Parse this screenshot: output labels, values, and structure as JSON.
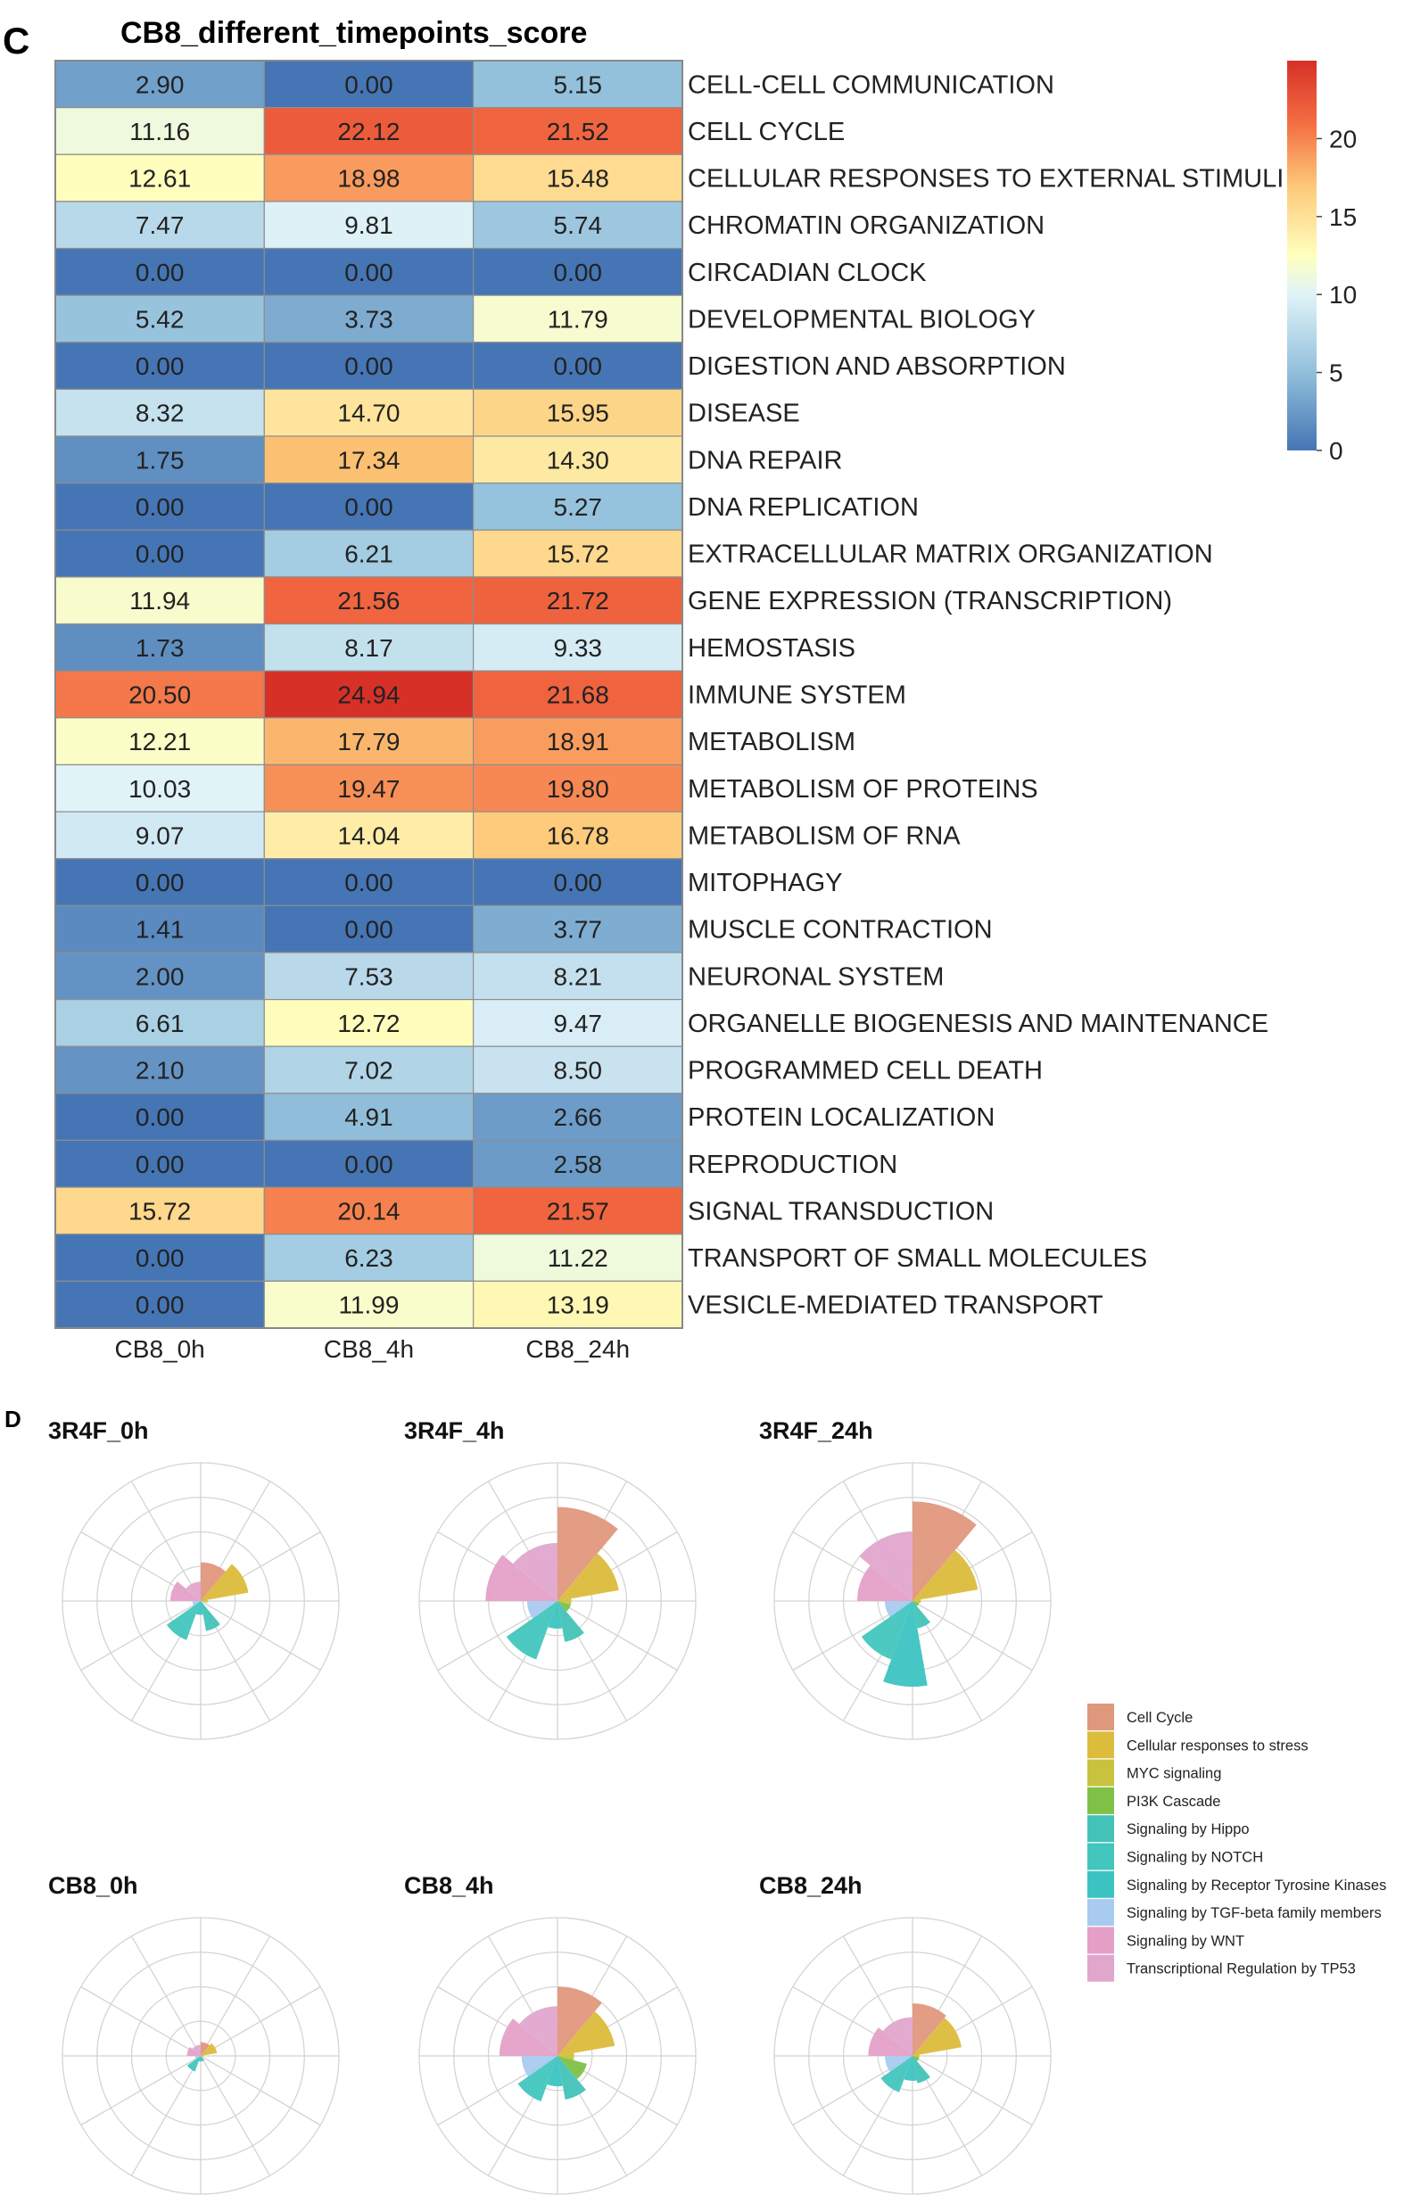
{
  "panel_c": {
    "label": "C",
    "chart_data": {
      "type": "heatmap",
      "title": "CB8_different_timepoints_score",
      "columns": [
        "CB8_0h",
        "CB8_4h",
        "CB8_24h"
      ],
      "rows": [
        {
          "name": "CELL-CELL COMMUNICATION",
          "values": [
            "2.90",
            "0.00",
            "5.15"
          ]
        },
        {
          "name": "CELL CYCLE",
          "values": [
            "11.16",
            "22.12",
            "21.52"
          ]
        },
        {
          "name": "CELLULAR RESPONSES TO EXTERNAL STIMULI",
          "values": [
            "12.61",
            "18.98",
            "15.48"
          ]
        },
        {
          "name": "CHROMATIN ORGANIZATION",
          "values": [
            "7.47",
            "9.81",
            "5.74"
          ]
        },
        {
          "name": "CIRCADIAN CLOCK",
          "values": [
            "0.00",
            "0.00",
            "0.00"
          ]
        },
        {
          "name": "DEVELOPMENTAL BIOLOGY",
          "values": [
            "5.42",
            "3.73",
            "11.79"
          ]
        },
        {
          "name": "DIGESTION AND ABSORPTION",
          "values": [
            "0.00",
            "0.00",
            "0.00"
          ]
        },
        {
          "name": "DISEASE",
          "values": [
            "8.32",
            "14.70",
            "15.95"
          ]
        },
        {
          "name": "DNA REPAIR",
          "values": [
            "1.75",
            "17.34",
            "14.30"
          ]
        },
        {
          "name": "DNA REPLICATION",
          "values": [
            "0.00",
            "0.00",
            "5.27"
          ]
        },
        {
          "name": "EXTRACELLULAR MATRIX ORGANIZATION",
          "values": [
            "0.00",
            "6.21",
            "15.72"
          ]
        },
        {
          "name": "GENE EXPRESSION (TRANSCRIPTION)",
          "values": [
            "11.94",
            "21.56",
            "21.72"
          ]
        },
        {
          "name": "HEMOSTASIS",
          "values": [
            "1.73",
            "8.17",
            "9.33"
          ]
        },
        {
          "name": "IMMUNE SYSTEM",
          "values": [
            "20.50",
            "24.94",
            "21.68"
          ]
        },
        {
          "name": "METABOLISM",
          "values": [
            "12.21",
            "17.79",
            "18.91"
          ]
        },
        {
          "name": "METABOLISM OF PROTEINS",
          "values": [
            "10.03",
            "19.47",
            "19.80"
          ]
        },
        {
          "name": "METABOLISM OF RNA",
          "values": [
            "9.07",
            "14.04",
            "16.78"
          ]
        },
        {
          "name": "MITOPHAGY",
          "values": [
            "0.00",
            "0.00",
            "0.00"
          ]
        },
        {
          "name": "MUSCLE CONTRACTION",
          "values": [
            "1.41",
            "0.00",
            "3.77"
          ]
        },
        {
          "name": "NEURONAL SYSTEM",
          "values": [
            "2.00",
            "7.53",
            "8.21"
          ]
        },
        {
          "name": "ORGANELLE BIOGENESIS AND MAINTENANCE",
          "values": [
            "6.61",
            "12.72",
            "9.47"
          ]
        },
        {
          "name": "PROGRAMMED CELL DEATH",
          "values": [
            "2.10",
            "7.02",
            "8.50"
          ]
        },
        {
          "name": "PROTEIN LOCALIZATION",
          "values": [
            "0.00",
            "4.91",
            "2.66"
          ]
        },
        {
          "name": "REPRODUCTION",
          "values": [
            "0.00",
            "0.00",
            "2.58"
          ]
        },
        {
          "name": "SIGNAL TRANSDUCTION",
          "values": [
            "15.72",
            "20.14",
            "21.57"
          ]
        },
        {
          "name": "TRANSPORT OF SMALL MOLECULES",
          "values": [
            "0.00",
            "6.23",
            "11.22"
          ]
        },
        {
          "name": "VESICLE-MEDIATED TRANSPORT",
          "values": [
            "0.00",
            "11.99",
            "13.19"
          ]
        }
      ],
      "color_scale": {
        "min": 0,
        "max": 25,
        "stops": [
          {
            "v": 0,
            "c": "#4575b4"
          },
          {
            "v": 5,
            "c": "#91bfdb"
          },
          {
            "v": 10,
            "c": "#e0f3f8"
          },
          {
            "v": 12.5,
            "c": "#ffffbf"
          },
          {
            "v": 17,
            "c": "#fdc878"
          },
          {
            "v": 21,
            "c": "#f46d43"
          },
          {
            "v": 25,
            "c": "#d73027"
          }
        ],
        "ticks": [
          "20",
          "15",
          "10",
          "5",
          "0"
        ],
        "tick_values": [
          20,
          15,
          10,
          5,
          0
        ]
      }
    }
  },
  "panel_d": {
    "label": "D",
    "chart_data": {
      "type": "polar_bar",
      "rings": 4,
      "spokes": 12,
      "categories": [
        {
          "name": "Cell Cycle",
          "color": "#e0987d"
        },
        {
          "name": "Cellular responses to stress",
          "color": "#dcbc3c"
        },
        {
          "name": "MYC signaling",
          "color": "#c9c23e"
        },
        {
          "name": "PI3K Cascade",
          "color": "#7ec146"
        },
        {
          "name": "Signaling by Hippo",
          "color": "#43c3b8"
        },
        {
          "name": "Signaling by NOTCH",
          "color": "#42c6bd"
        },
        {
          "name": "Signaling by Receptor Tyrosine Kinases",
          "color": "#3cc3c1"
        },
        {
          "name": "Signaling by TGF-beta family members",
          "color": "#a9cbef"
        },
        {
          "name": "Signaling by WNT",
          "color": "#e5a0c8"
        },
        {
          "name": "Transcriptional Regulation by TP53",
          "color": "#e0a6cc"
        }
      ],
      "panels": [
        {
          "title": "3R4F_0h",
          "values": [
            0.28,
            0.35,
            0.05,
            0.0,
            0.22,
            0.3,
            0.1,
            0.06,
            0.22,
            0.14
          ]
        },
        {
          "title": "3R4F_4h",
          "values": [
            0.68,
            0.45,
            0.1,
            0.1,
            0.3,
            0.45,
            0.2,
            0.22,
            0.52,
            0.42
          ]
        },
        {
          "title": "3R4F_24h",
          "values": [
            0.72,
            0.48,
            0.06,
            0.05,
            0.2,
            0.45,
            0.62,
            0.2,
            0.4,
            0.5
          ]
        },
        {
          "title": "CB8_0h",
          "values": [
            0.1,
            0.12,
            0.02,
            0.0,
            0.04,
            0.12,
            0.04,
            0.04,
            0.1,
            0.08
          ]
        },
        {
          "title": "CB8_4h",
          "values": [
            0.5,
            0.42,
            0.12,
            0.22,
            0.32,
            0.35,
            0.22,
            0.26,
            0.42,
            0.36
          ]
        },
        {
          "title": "CB8_24h",
          "values": [
            0.38,
            0.36,
            0.05,
            0.05,
            0.2,
            0.28,
            0.18,
            0.2,
            0.32,
            0.28
          ]
        }
      ]
    }
  }
}
